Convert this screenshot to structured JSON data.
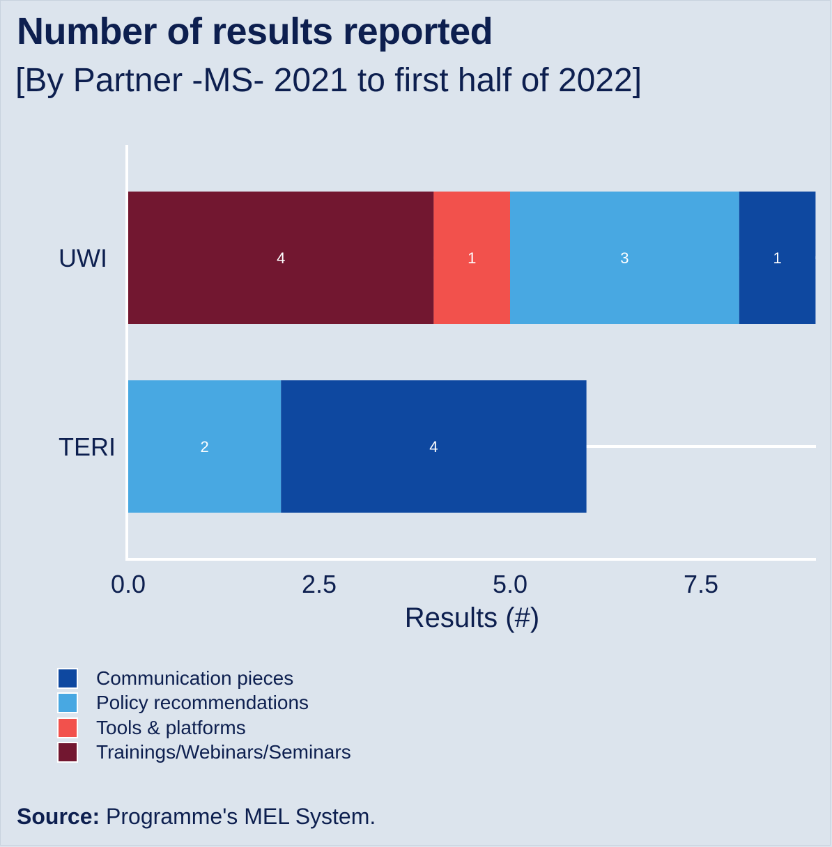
{
  "chart_data": {
    "type": "bar",
    "orientation": "horizontal",
    "stacked": true,
    "title": "Number of results reported",
    "subtitle": "[By Partner -MS-  2021 to first half of 2022]",
    "xlabel": "Results (#)",
    "ylabel": "",
    "categories": [
      "UWI",
      "TERI"
    ],
    "x_ticks": [
      "0.0",
      "2.5",
      "5.0",
      "7.5"
    ],
    "xlim": [
      0,
      9
    ],
    "series": [
      {
        "name": "Trainings/Webinars/Seminars",
        "color": "#721730",
        "values": [
          4,
          0
        ]
      },
      {
        "name": "Tools & platforms",
        "color": "#f2514c",
        "values": [
          1,
          0
        ]
      },
      {
        "name": "Policy recommendations",
        "color": "#48a8e2",
        "values": [
          3,
          2
        ]
      },
      {
        "name": "Communication pieces",
        "color": "#0e48a0",
        "values": [
          1,
          4
        ]
      }
    ],
    "legend": [
      {
        "name": "Communication pieces",
        "color": "#0e48a0"
      },
      {
        "name": "Policy recommendations",
        "color": "#48a8e2"
      },
      {
        "name": "Tools & platforms",
        "color": "#f2514c"
      },
      {
        "name": "Trainings/Webinars/Seminars",
        "color": "#721730"
      }
    ],
    "legend_position": "bottom-left",
    "grid": "horizontal-only",
    "data_label_color": "#ffffff"
  },
  "source": {
    "label": "Source:",
    "text": " Programme's MEL System."
  }
}
